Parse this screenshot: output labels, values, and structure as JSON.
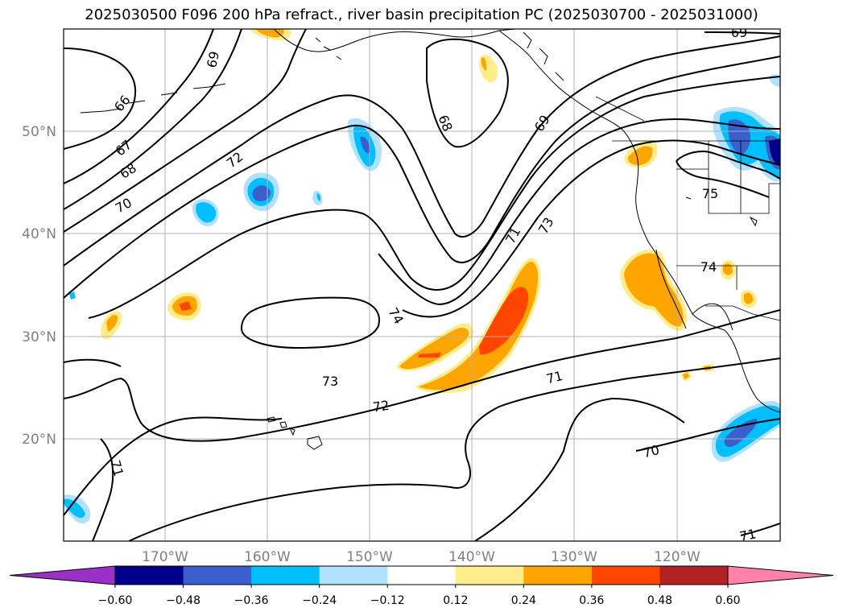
{
  "title": "2025030500 F096 200 hPa refract., river basin precipitation PC (2025030700 - 2025031000)",
  "lat_ticks": [
    "50°N",
    "40°N",
    "30°N",
    "20°N"
  ],
  "lon_ticks": [
    "170°W",
    "160°W",
    "150°W",
    "140°W",
    "130°W",
    "120°W"
  ],
  "contour_labels": [
    "69",
    "66",
    "67",
    "68",
    "70",
    "72",
    "68",
    "69",
    "69",
    "75",
    "71",
    "73",
    "74",
    "74",
    "73",
    "72",
    "71",
    "70",
    "71",
    "71"
  ],
  "colorbar": {
    "tick_labels": [
      "−0.60",
      "−0.48",
      "−0.36",
      "−0.24",
      "−0.12",
      "0.12",
      "0.24",
      "0.36",
      "0.48",
      "0.60"
    ],
    "colors": [
      "#9b30c9",
      "#00008b",
      "#3a5fcd",
      "#00bfff",
      "#b0e2ff",
      "#ffffff",
      "#ffec8b",
      "#ffa500",
      "#ff4500",
      "#b22222",
      "#ff82ab"
    ]
  },
  "shading_colors": {
    "light_blue": "#b0e2ff",
    "blue": "#00bfff",
    "royal": "#3a5fcd",
    "yellow": "#ffec8b",
    "orange": "#ffa500",
    "red_orange": "#ff4500"
  }
}
